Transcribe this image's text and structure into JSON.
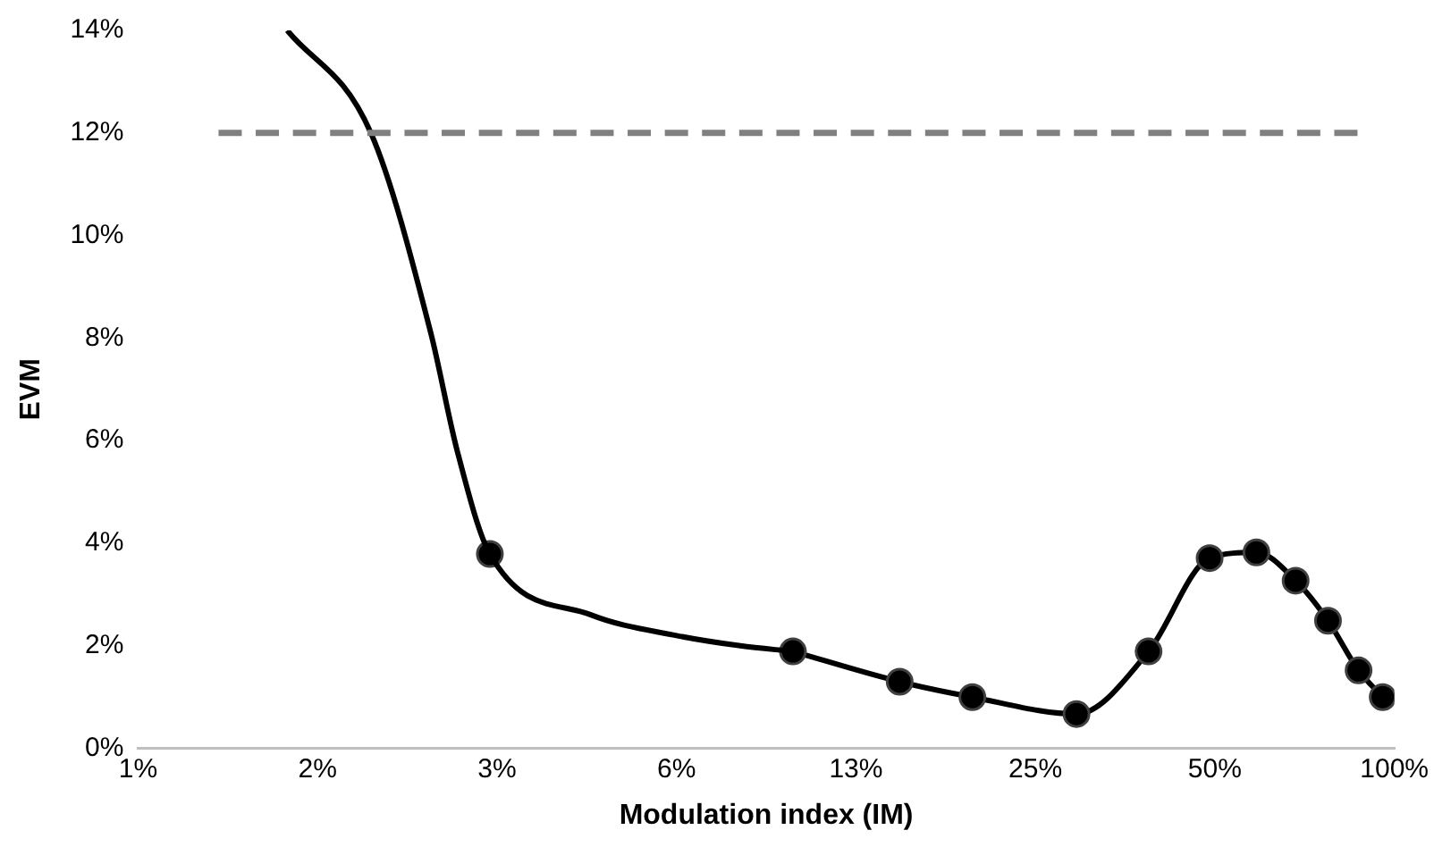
{
  "chart_data": {
    "type": "line",
    "xlabel": "Modulation index (IM)",
    "ylabel": "EVM",
    "log": "x",
    "grid": false,
    "legend": false,
    "line_style": "solid",
    "xlim": [
      0.78125,
      100
    ],
    "xticks": [
      {
        "value": 0.78125,
        "label": "1%"
      },
      {
        "value": 1.5625,
        "label": "2%"
      },
      {
        "value": 3.125,
        "label": "3%"
      },
      {
        "value": 6.25,
        "label": "6%"
      },
      {
        "value": 12.5,
        "label": "13%"
      },
      {
        "value": 25,
        "label": "25%"
      },
      {
        "value": 50,
        "label": "50%"
      },
      {
        "value": 100,
        "label": "100%"
      }
    ],
    "ylim": [
      0,
      14
    ],
    "yticks": [
      {
        "value": 0,
        "label": "0%"
      },
      {
        "value": 2,
        "label": "2%"
      },
      {
        "value": 4,
        "label": "4%"
      },
      {
        "value": 6,
        "label": "6%"
      },
      {
        "value": 8,
        "label": "8%"
      },
      {
        "value": 10,
        "label": "10%"
      },
      {
        "value": 12,
        "label": "12%"
      },
      {
        "value": 14,
        "label": "14%"
      }
    ],
    "series": [
      {
        "color": "#000000",
        "marker": "none",
        "x": [
          1.39,
          1.92,
          2.42,
          2.68,
          3.04,
          4.5,
          6.25,
          8,
          9.8
        ],
        "values": [
          14,
          12,
          8.1,
          5.8,
          3.79,
          2.6,
          2.2,
          2.0,
          1.89
        ]
      },
      {
        "type": "scatter",
        "color": "#000000",
        "marker": "circle",
        "x": [
          3.04
        ],
        "values": [
          3.79
        ]
      },
      {
        "color": "#000000",
        "marker": "circle",
        "x": [
          9.8,
          14.8,
          19.6,
          29.3,
          38.7,
          49,
          58.7,
          68.3,
          77.4,
          87.1,
          95.6
        ],
        "values": [
          1.89,
          1.3,
          1.0,
          0.67,
          1.89,
          3.71,
          3.82,
          3.27,
          2.49,
          1.52,
          1.0
        ]
      }
    ],
    "ref_lines": [
      {
        "axis": "y",
        "value": 12,
        "color": "#808080",
        "line_style": "dashed"
      }
    ]
  }
}
